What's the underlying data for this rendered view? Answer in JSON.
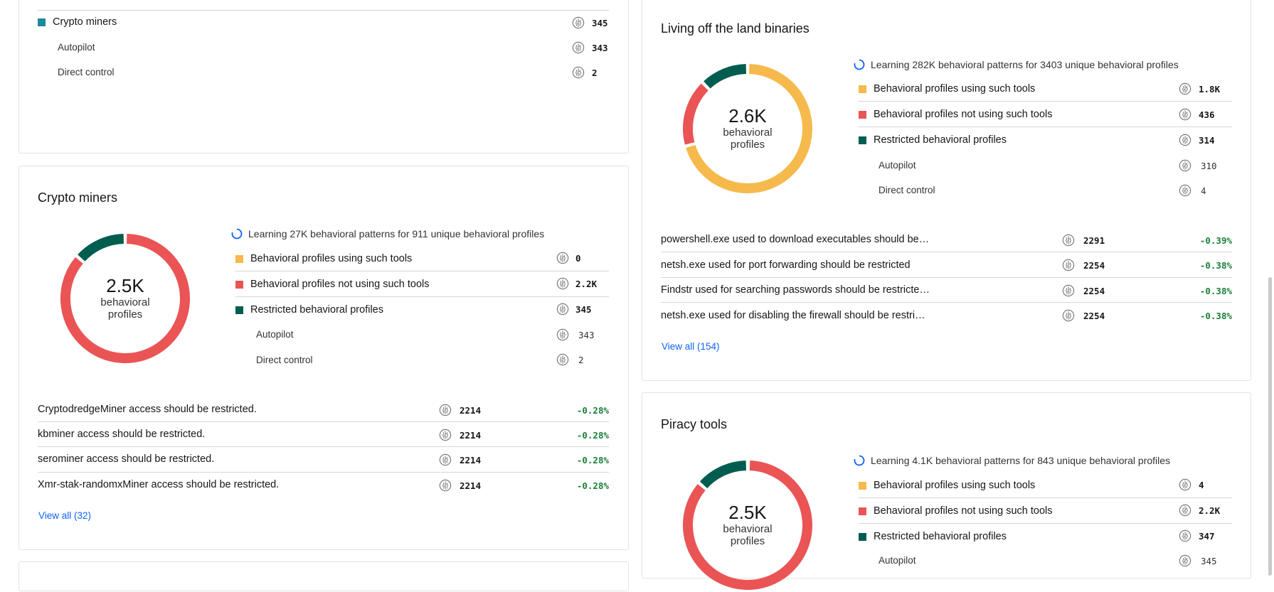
{
  "top_card": {
    "restricted_label": "Crypto miners",
    "restricted_value": "345",
    "autopilot_label": "Autopilot",
    "autopilot_value": "343",
    "direct_label": "Direct control",
    "direct_value": "2"
  },
  "crypto": {
    "title": "Crypto miners",
    "total": "2.5K",
    "total_label_1": "behavioral",
    "total_label_2": "profiles",
    "learning": "Learning 27K behavioral patterns for 911 unique behavioral profiles",
    "legend": [
      {
        "label": "Behavioral profiles using such tools",
        "value": "0",
        "color": "#f6b94c"
      },
      {
        "label": "Behavioral profiles not using such tools",
        "value": "2.2K",
        "color": "#ea5455"
      },
      {
        "label": "Restricted behavioral profiles",
        "value": "345",
        "color": "#005d4f"
      }
    ],
    "autopilot_label": "Autopilot",
    "autopilot_value": "343",
    "direct_label": "Direct control",
    "direct_value": "2",
    "rules": [
      {
        "text": "CryptodredgeMiner access should be restricted.",
        "count": "2214",
        "pct": "-0.28%"
      },
      {
        "text": "kbminer access should be restricted.",
        "count": "2214",
        "pct": "-0.28%"
      },
      {
        "text": "serominer access should be restricted.",
        "count": "2214",
        "pct": "-0.28%"
      },
      {
        "text": "Xmr-stak-randomxMiner access should be restricted.",
        "count": "2214",
        "pct": "-0.28%"
      }
    ],
    "view_all": "View all (32)",
    "donut": {
      "using": 0,
      "not_using": 2200,
      "restricted": 345
    }
  },
  "lotl": {
    "title": "Living off the land binaries",
    "total": "2.6K",
    "total_label_1": "behavioral",
    "total_label_2": "profiles",
    "learning": "Learning 282K behavioral patterns for 3403 unique behavioral profiles",
    "legend": [
      {
        "label": "Behavioral profiles using such tools",
        "value": "1.8K",
        "color": "#f6b94c"
      },
      {
        "label": "Behavioral profiles not using such tools",
        "value": "436",
        "color": "#ea5455"
      },
      {
        "label": "Restricted behavioral profiles",
        "value": "314",
        "color": "#005d4f"
      }
    ],
    "autopilot_label": "Autopilot",
    "autopilot_value": "310",
    "direct_label": "Direct control",
    "direct_value": "4",
    "rules": [
      {
        "text": "powershell.exe used to download executables should be…",
        "count": "2291",
        "pct": "-0.39%"
      },
      {
        "text": "netsh.exe used for port forwarding should be restricted",
        "count": "2254",
        "pct": "-0.38%"
      },
      {
        "text": "Findstr used for searching passwords should be restricte…",
        "count": "2254",
        "pct": "-0.38%"
      },
      {
        "text": "netsh.exe used for disabling the firewall should be restri…",
        "count": "2254",
        "pct": "-0.38%"
      }
    ],
    "view_all": "View all (154)",
    "donut": {
      "using": 1800,
      "not_using": 436,
      "restricted": 314
    }
  },
  "piracy": {
    "title": "Piracy tools",
    "total": "2.5K",
    "total_label_1": "behavioral",
    "total_label_2": "profiles",
    "learning": "Learning 4.1K behavioral patterns for 843 unique behavioral profiles",
    "legend": [
      {
        "label": "Behavioral profiles using such tools",
        "value": "4",
        "color": "#f6b94c"
      },
      {
        "label": "Behavioral profiles not using such tools",
        "value": "2.2K",
        "color": "#ea5455"
      },
      {
        "label": "Restricted behavioral profiles",
        "value": "347",
        "color": "#005d4f"
      }
    ],
    "autopilot_label": "Autopilot",
    "autopilot_value": "345",
    "donut": {
      "using": 4,
      "not_using": 2200,
      "restricted": 347
    }
  }
}
